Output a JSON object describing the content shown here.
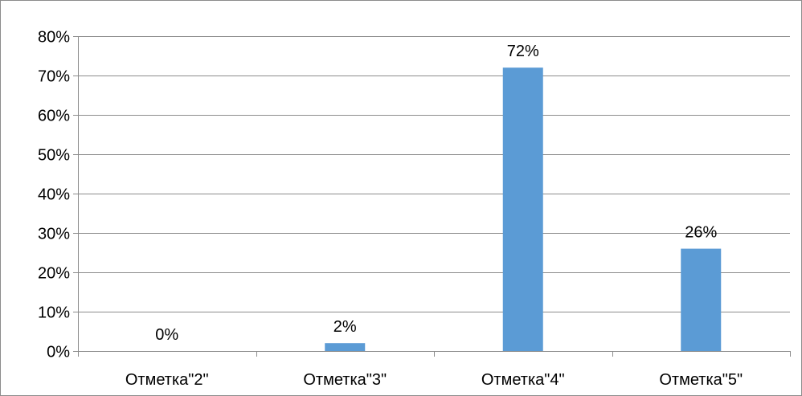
{
  "chart_data": {
    "type": "bar",
    "categories": [
      "Отметка\"2\"",
      "Отметка\"3\"",
      "Отметка\"4\"",
      "Отметка\"5\""
    ],
    "values": [
      0,
      2,
      72,
      26
    ],
    "data_labels": [
      "0%",
      "2%",
      "72%",
      "26%"
    ],
    "title": "",
    "xlabel": "",
    "ylabel": "",
    "ylim": [
      0,
      80
    ],
    "y_ticks": [
      0,
      10,
      20,
      30,
      40,
      50,
      60,
      70,
      80
    ],
    "y_tick_labels": [
      "0%",
      "10%",
      "20%",
      "30%",
      "40%",
      "50%",
      "60%",
      "70%",
      "80%"
    ],
    "grid": true,
    "legend": "none",
    "bar_color": "#5b9bd5"
  }
}
